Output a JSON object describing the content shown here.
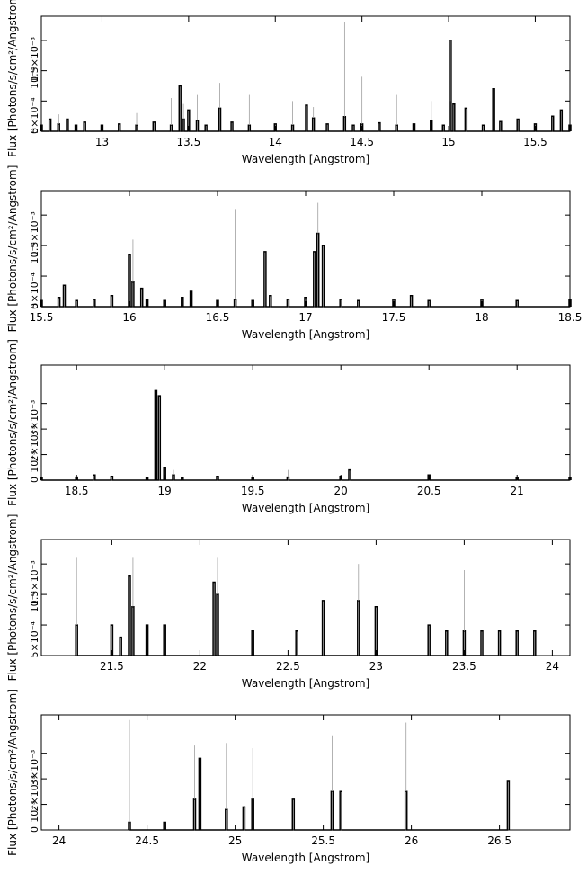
{
  "chart_data": [
    {
      "type": "line",
      "xlabel": "Wavelength [Angstrom]",
      "ylabel": "Flux [Photons/s/cm²/Angstrom]",
      "xlim": [
        12.65,
        15.7
      ],
      "ylim": [
        0,
        0.0019
      ],
      "x_ticks": [
        13,
        13.5,
        14,
        14.5,
        15,
        15.5
      ],
      "x_tick_labels": [
        "13",
        "13.5",
        "14",
        "14.5",
        "15",
        "15.5"
      ],
      "y_ticks": [
        0,
        0.0005,
        0.001,
        0.0015
      ],
      "y_tick_labels": [
        "0",
        "5×10⁻⁴",
        "10⁻³",
        "1.5×10⁻³"
      ],
      "y_tick_prefix": "10⁻³",
      "y_overlap_label": "2×10⁻³",
      "x_bin_width": 0.01,
      "series": [
        {
          "x": [
            12.65,
            12.7,
            12.75,
            12.8,
            12.85,
            12.9,
            13.0,
            13.1,
            13.2,
            13.3,
            13.4,
            13.45,
            13.47,
            13.5,
            13.55,
            13.6,
            13.68,
            13.75,
            13.85,
            14.0,
            14.1,
            14.18,
            14.22,
            14.3,
            14.4,
            14.45,
            14.5,
            14.6,
            14.7,
            14.8,
            14.9,
            14.97,
            15.01,
            15.03,
            15.1,
            15.2,
            15.26,
            15.3,
            15.4,
            15.5,
            15.6,
            15.65,
            15.7
          ],
          "y": [
            0.0001,
            0.0002,
            0.00012,
            0.0002,
            0.0001,
            0.00015,
            0.0001,
            0.00012,
            0.0001,
            0.00015,
            0.0001,
            0.00075,
            0.0002,
            0.00035,
            0.00018,
            0.0001,
            0.00038,
            0.00015,
            0.0001,
            0.00012,
            0.0001,
            0.00043,
            0.00022,
            0.00012,
            0.00024,
            0.0001,
            0.00012,
            0.00014,
            0.0001,
            0.00012,
            0.00018,
            0.0001,
            0.0015,
            0.00045,
            0.00038,
            0.0001,
            0.0007,
            0.00016,
            0.0002,
            0.00012,
            0.00025,
            0.00035,
            0.0001
          ]
        }
      ],
      "error_tops": [
        0.0003,
        0.00028,
        0.0006,
        0.00095,
        0.0003,
        0.00055,
        0.00045,
        0.0006,
        0.0008,
        0.0006,
        0.0005,
        0.0004,
        0.0018,
        0.0009,
        0.0006,
        0.0005,
        0.0005
      ]
    },
    {
      "type": "line",
      "xlabel": "Wavelength [Angstrom]",
      "ylabel": "Flux [Photons/s/cm²/Angstrom]",
      "xlim": [
        15.5,
        18.5
      ],
      "ylim": [
        0,
        0.0019
      ],
      "x_ticks": [
        15.5,
        16,
        16.5,
        17,
        17.5,
        18,
        18.5
      ],
      "x_tick_labels": [
        "15.5",
        "16",
        "16.5",
        "17",
        "17.5",
        "18",
        "18.5"
      ],
      "y_ticks": [
        0,
        0.0005,
        0.001,
        0.0015
      ],
      "y_tick_labels": [
        "0",
        "5×10⁻⁴",
        "10⁻³",
        "1.5×10⁻³"
      ],
      "y_tick_prefix": "10⁻³",
      "y_overlap_label": "2×10⁻³",
      "x_bin_width": 0.01,
      "series": [
        {
          "x": [
            15.5,
            15.6,
            15.63,
            15.7,
            15.8,
            15.9,
            16.0,
            16.02,
            16.07,
            16.1,
            16.2,
            16.3,
            16.35,
            16.5,
            16.6,
            16.7,
            16.77,
            16.8,
            16.9,
            17.0,
            17.05,
            17.07,
            17.1,
            17.2,
            17.3,
            17.5,
            17.6,
            17.7,
            18.0,
            18.2,
            18.5
          ],
          "y": [
            0.0001,
            0.00015,
            0.00035,
            0.0001,
            0.00012,
            0.00018,
            0.00085,
            0.0004,
            0.0003,
            0.00012,
            0.0001,
            0.00015,
            0.00025,
            0.0001,
            0.00012,
            0.0001,
            0.0009,
            0.00018,
            0.00012,
            0.00015,
            0.0009,
            0.0012,
            0.001,
            0.00012,
            0.0001,
            0.00012,
            0.00018,
            0.0001,
            0.00012,
            0.0001,
            0.00012
          ]
        }
      ],
      "error_tops": [
        0.0012,
        0.0011,
        0.0016,
        0.0017
      ]
    },
    {
      "type": "line",
      "xlabel": "Wavelength [Angstrom]",
      "ylabel": "Flux [Photons/s/cm²/Angstrom]",
      "xlim": [
        18.3,
        21.3
      ],
      "ylim": [
        0,
        0.0045
      ],
      "x_ticks": [
        18.5,
        19,
        19.5,
        20,
        20.5,
        21
      ],
      "x_tick_labels": [
        "18.5",
        "19",
        "19.5",
        "20",
        "20.5",
        "21"
      ],
      "y_ticks": [
        0,
        0.001,
        0.002,
        0.003
      ],
      "y_tick_labels": [
        "0",
        "10⁻³",
        "2×10⁻³",
        "3×10⁻³"
      ],
      "y_tick_prefix": "10⁻³",
      "y_overlap_label": "",
      "x_bin_width": 0.01,
      "series": [
        {
          "x": [
            18.3,
            18.5,
            18.6,
            18.7,
            18.9,
            18.95,
            18.97,
            19.0,
            19.05,
            19.1,
            19.3,
            19.5,
            19.7,
            20.0,
            20.05,
            20.5,
            21.0,
            21.3
          ],
          "y": [
            0.0001,
            0.00012,
            0.0002,
            0.00015,
            0.0001,
            0.0035,
            0.0033,
            0.0005,
            0.0002,
            0.0001,
            0.00015,
            0.0001,
            0.00012,
            0.00015,
            0.0004,
            0.0002,
            0.0001,
            0.0001
          ]
        }
      ],
      "error_tops": [
        0.0043,
        0.0042,
        0.0004,
        0.0004
      ]
    },
    {
      "type": "line",
      "xlabel": "Wavelength [Angstrom]",
      "ylabel": "Flux [Photons/s/cm²/Angstrom]",
      "xlim": [
        21.1,
        24.1
      ],
      "ylim": [
        0,
        0.0019
      ],
      "x_ticks": [
        21.5,
        22,
        22.5,
        23,
        23.5,
        24
      ],
      "x_tick_labels": [
        "21.5",
        "22",
        "22.5",
        "23",
        "23.5",
        "24"
      ],
      "y_ticks": [
        0.0005,
        0.001,
        0.0015
      ],
      "y_tick_labels": [
        "5×10⁻⁴",
        "10⁻³",
        "1.5×10⁻³"
      ],
      "y_tick_prefix": "10⁻³",
      "y_overlap_label": "2×10⁻³",
      "x_bin_width": 0.01,
      "series": [
        {
          "x": [
            21.3,
            21.5,
            21.55,
            21.6,
            21.62,
            21.7,
            21.8,
            22.08,
            22.1,
            22.3,
            22.55,
            22.7,
            22.9,
            23.0,
            23.3,
            23.4,
            23.5,
            23.6,
            23.7,
            23.8,
            23.9
          ],
          "y": [
            0.0005,
            0.0005,
            0.0003,
            0.0013,
            0.0008,
            0.0005,
            0.0005,
            0.0012,
            0.001,
            0.0004,
            0.0004,
            0.0009,
            0.0009,
            0.0008,
            0.0005,
            0.0004,
            0.0004,
            0.0004,
            0.0004,
            0.0004,
            0.0004
          ]
        }
      ],
      "error_tops": [
        0.0016,
        0.0016,
        0.0016,
        0.0015,
        0.0014
      ]
    },
    {
      "type": "line",
      "xlabel": "Wavelength [Angstrom]",
      "ylabel": "Flux [Photons/s/cm²/Angstrom]",
      "xlim": [
        23.9,
        26.9
      ],
      "ylim": [
        0,
        0.0045
      ],
      "x_ticks": [
        24,
        24.5,
        25,
        25.5,
        26,
        26.5
      ],
      "x_tick_labels": [
        "24",
        "24.5",
        "25",
        "25.5",
        "26",
        "26.5"
      ],
      "y_ticks": [
        0,
        0.001,
        0.002,
        0.003
      ],
      "y_tick_labels": [
        "0",
        "10⁻³",
        "2×10⁻³",
        "3×10⁻³"
      ],
      "y_tick_prefix": "10⁻³",
      "y_overlap_label": "",
      "x_bin_width": 0.01,
      "series": [
        {
          "x": [
            24.4,
            24.6,
            24.77,
            24.8,
            24.95,
            25.05,
            25.1,
            25.33,
            25.55,
            25.6,
            25.97,
            26.55
          ],
          "y": [
            0.0003,
            0.0003,
            0.0012,
            0.0028,
            0.0008,
            0.0009,
            0.0012,
            0.0012,
            0.0015,
            0.0015,
            0.0015,
            0.0019
          ]
        }
      ],
      "error_tops": [
        0.0043,
        0.0033,
        0.0034,
        0.0032,
        0.0037,
        0.0042
      ]
    }
  ]
}
